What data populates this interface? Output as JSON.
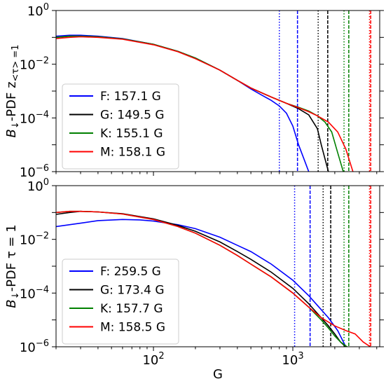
{
  "figure": {
    "xlabel": "G"
  },
  "chart_data": [
    {
      "type": "line",
      "panel": "top",
      "ylabel_main": "B",
      "ylabel_sub": "↓",
      "ylabel_rest": "-PDF z",
      "ylabel_sub2": "<τ> =1",
      "x_scale": "log",
      "y_scale": "log",
      "xlim": [
        20,
        4200
      ],
      "ylim": [
        1e-06,
        1
      ],
      "ytick_labels": [
        "10^-6",
        "10^-4",
        "10^-2",
        "10^0"
      ],
      "legend_placement": "lower-left",
      "series": [
        {
          "name": "F: 157.1 G",
          "color": "#0000ff",
          "x": [
            20,
            25,
            30,
            40,
            60,
            100,
            150,
            200,
            300,
            400,
            500,
            600,
            700,
            800,
            900,
            1000,
            1100,
            1200,
            1300
          ],
          "y": [
            0.11,
            0.12,
            0.12,
            0.11,
            0.09,
            0.055,
            0.03,
            0.017,
            0.006,
            0.0025,
            0.0012,
            0.0007,
            0.00045,
            0.00028,
            0.00015,
            5e-05,
            1e-05,
            3e-06,
            1e-06
          ]
        },
        {
          "name": "G: 149.5 G",
          "color": "#000000",
          "x": [
            20,
            25,
            30,
            40,
            60,
            100,
            150,
            200,
            300,
            400,
            500,
            700,
            900,
            1100,
            1300,
            1500,
            1600,
            1700,
            1800
          ],
          "y": [
            0.1,
            0.11,
            0.11,
            0.105,
            0.088,
            0.055,
            0.03,
            0.017,
            0.006,
            0.0025,
            0.0013,
            0.0006,
            0.00035,
            0.00022,
            0.00013,
            4e-05,
            1e-05,
            3e-06,
            1e-06
          ]
        },
        {
          "name": "K: 155.1 G",
          "color": "#008000",
          "x": [
            20,
            25,
            30,
            40,
            60,
            100,
            150,
            200,
            300,
            400,
            500,
            700,
            900,
            1100,
            1300,
            1500,
            1700,
            1900,
            2100,
            2300
          ],
          "y": [
            0.1,
            0.11,
            0.11,
            0.105,
            0.088,
            0.055,
            0.03,
            0.017,
            0.006,
            0.0025,
            0.0013,
            0.0006,
            0.00035,
            0.00025,
            0.00018,
            0.00012,
            7e-05,
            3e-05,
            5e-06,
            1e-06
          ]
        },
        {
          "name": "M: 158.1 G",
          "color": "#ff0000",
          "x": [
            20,
            25,
            30,
            40,
            60,
            100,
            150,
            200,
            300,
            400,
            500,
            700,
            900,
            1100,
            1300,
            1500,
            1800,
            2100,
            2400,
            2700
          ],
          "y": [
            0.09,
            0.1,
            0.105,
            0.1,
            0.085,
            0.053,
            0.029,
            0.016,
            0.006,
            0.0025,
            0.0013,
            0.0006,
            0.00035,
            0.00024,
            0.00017,
            0.00012,
            7e-05,
            3e-05,
            7e-06,
            1e-06
          ]
        }
      ],
      "vlines": [
        {
          "x": 800,
          "color": "#0000ff",
          "style": "dotted"
        },
        {
          "x": 1080,
          "color": "#0000ff",
          "style": "dashed"
        },
        {
          "x": 1520,
          "color": "#000000",
          "style": "dotted"
        },
        {
          "x": 1780,
          "color": "#000000",
          "style": "dashed"
        },
        {
          "x": 2330,
          "color": "#008000",
          "style": "dotted"
        },
        {
          "x": 2520,
          "color": "#008000",
          "style": "dashed"
        },
        {
          "x": 3550,
          "color": "#ff0000",
          "style": "dotted"
        },
        {
          "x": 3620,
          "color": "#ff0000",
          "style": "dashed"
        }
      ]
    },
    {
      "type": "line",
      "panel": "bottom",
      "ylabel_main": "B",
      "ylabel_sub": "↓",
      "ylabel_rest": "-PDF τ = 1",
      "x_scale": "log",
      "y_scale": "log",
      "xlim": [
        20,
        4200
      ],
      "ylim": [
        1e-06,
        1
      ],
      "xtick_labels": [
        "10^2",
        "10^3"
      ],
      "ytick_labels": [
        "10^-6",
        "10^-4",
        "10^-2",
        "10^0"
      ],
      "legend_placement": "lower-left",
      "series": [
        {
          "name": "F: 259.5 G",
          "color": "#0000ff",
          "x": [
            20,
            30,
            40,
            60,
            80,
            100,
            150,
            200,
            300,
            400,
            500,
            700,
            1000,
            1300,
            1500,
            1800,
            2100,
            2400
          ],
          "y": [
            0.03,
            0.04,
            0.05,
            0.055,
            0.053,
            0.048,
            0.035,
            0.025,
            0.012,
            0.006,
            0.0035,
            0.0012,
            0.0003,
            8e-05,
            3.5e-05,
            1.2e-05,
            4e-06,
            1e-06
          ]
        },
        {
          "name": "G: 173.4 G",
          "color": "#000000",
          "x": [
            20,
            25,
            30,
            40,
            60,
            100,
            150,
            200,
            300,
            400,
            500,
            700,
            1000,
            1300,
            1600,
            1800,
            2000,
            2200,
            2400
          ],
          "y": [
            0.085,
            0.1,
            0.11,
            0.105,
            0.09,
            0.058,
            0.033,
            0.02,
            0.008,
            0.0035,
            0.0018,
            0.0006,
            0.00015,
            4e-05,
            1.2e-05,
            6e-06,
            3e-06,
            1.5e-06,
            1e-06
          ]
        },
        {
          "name": "K: 157.7 G",
          "color": "#008000",
          "x": [
            20,
            25,
            30,
            40,
            60,
            100,
            150,
            200,
            300,
            400,
            500,
            700,
            1000,
            1300,
            1600,
            1800,
            2000,
            2200,
            2450
          ],
          "y": [
            0.1,
            0.11,
            0.11,
            0.105,
            0.088,
            0.055,
            0.03,
            0.017,
            0.006,
            0.0025,
            0.0012,
            0.0004,
            0.0001,
            3e-05,
            1e-05,
            5e-06,
            2.5e-06,
            1.5e-06,
            1e-06
          ]
        },
        {
          "name": "M: 158.5 G",
          "color": "#ff0000",
          "x": [
            20,
            25,
            30,
            40,
            60,
            100,
            150,
            200,
            300,
            400,
            500,
            700,
            1000,
            1300,
            1600,
            2000,
            2400,
            2800,
            3200,
            3600
          ],
          "y": [
            0.1,
            0.11,
            0.11,
            0.105,
            0.088,
            0.055,
            0.03,
            0.017,
            0.006,
            0.0025,
            0.0012,
            0.0004,
            0.0001,
            3e-05,
            1.2e-05,
            6e-06,
            4e-06,
            3e-06,
            1.5e-06,
            1e-06
          ]
        }
      ],
      "vlines": [
        {
          "x": 1030,
          "color": "#0000ff",
          "style": "dotted"
        },
        {
          "x": 1330,
          "color": "#0000ff",
          "style": "dashed"
        },
        {
          "x": 1650,
          "color": "#000000",
          "style": "dotted"
        },
        {
          "x": 1870,
          "color": "#000000",
          "style": "dashed"
        },
        {
          "x": 2330,
          "color": "#008000",
          "style": "dotted"
        },
        {
          "x": 2520,
          "color": "#008000",
          "style": "dashed"
        },
        {
          "x": 3550,
          "color": "#ff0000",
          "style": "dotted"
        },
        {
          "x": 3620,
          "color": "#ff0000",
          "style": "dashed"
        }
      ]
    }
  ]
}
